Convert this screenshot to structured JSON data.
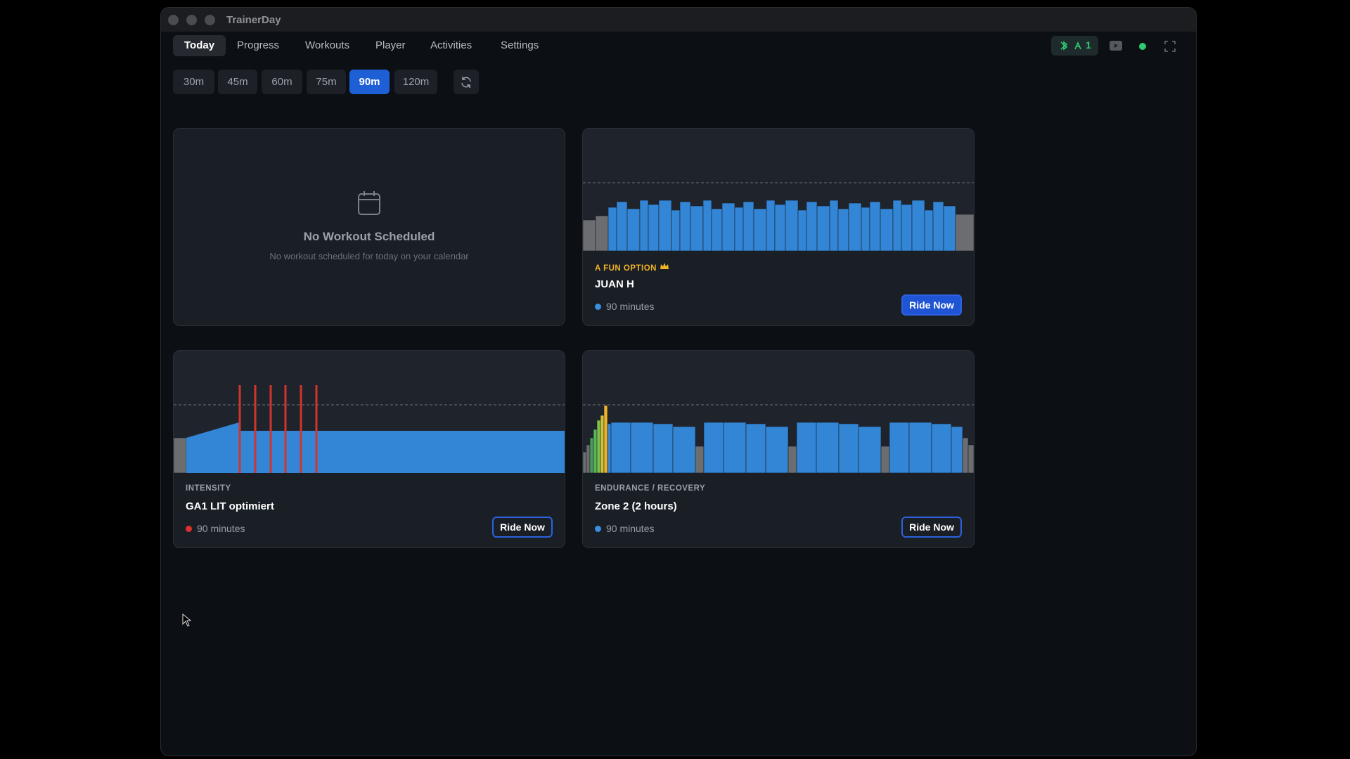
{
  "window": {
    "title": "TrainerDay"
  },
  "tabs": [
    "Today",
    "Progress",
    "Workouts",
    "Player",
    "Activities",
    "Settings"
  ],
  "status": {
    "device_count": "1"
  },
  "durations": [
    "30m",
    "45m",
    "60m",
    "75m",
    "90m",
    "120m"
  ],
  "empty_card": {
    "title": "No Workout Scheduled",
    "subtitle": "No workout scheduled for today on your calendar"
  },
  "workouts": [
    {
      "category": "A FUN OPTION",
      "name": "JUAN H",
      "duration": "90 minutes",
      "action": "Ride Now"
    },
    {
      "category": "INTENSITY",
      "name": "GA1 LIT optimiert",
      "duration": "90 minutes",
      "action": "Ride Now"
    },
    {
      "category": "ENDURANCE / RECOVERY",
      "name": "Zone 2 (2 hours)",
      "duration": "90 minutes",
      "action": "Ride Now"
    }
  ]
}
